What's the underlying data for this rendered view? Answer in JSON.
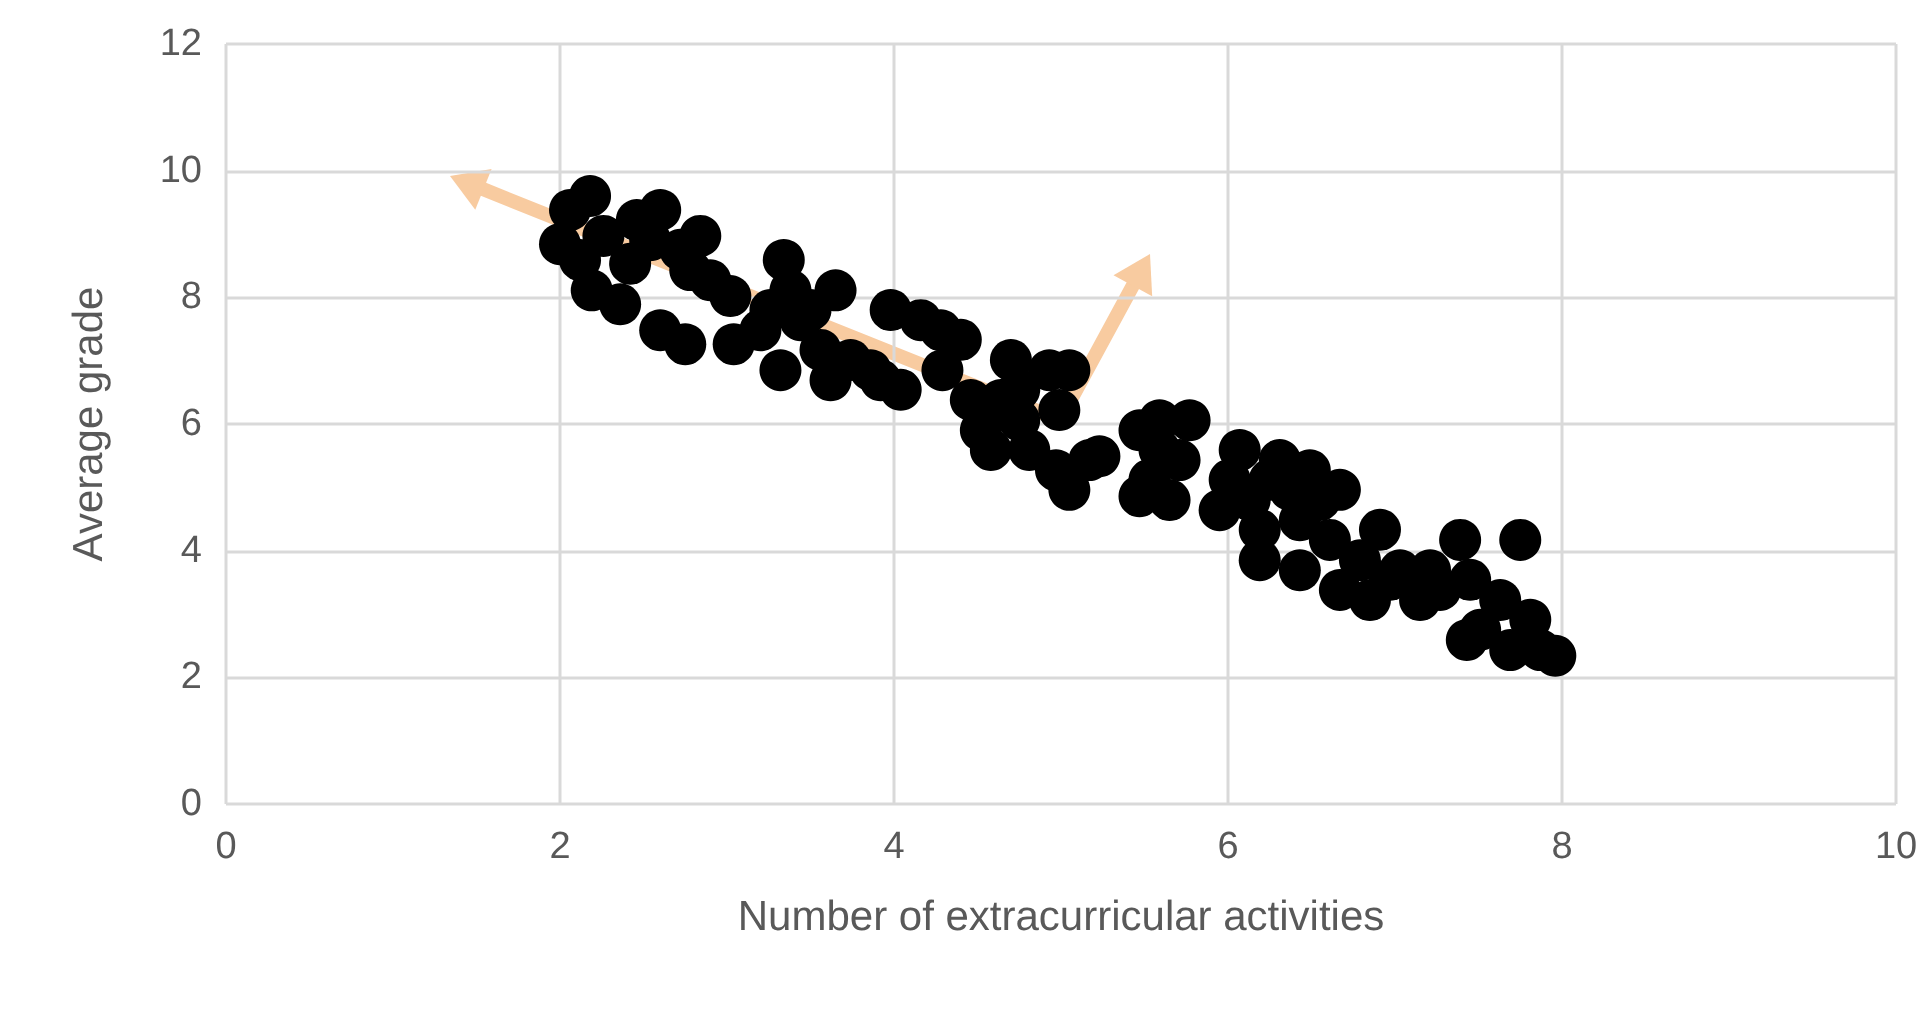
{
  "chart_data": {
    "type": "scatter",
    "xlabel": "Number of extracurricular activities",
    "ylabel": "Average grade",
    "xlim": [
      0,
      10
    ],
    "xticks": [
      0,
      2,
      4,
      6,
      8,
      10
    ],
    "ylim": [
      0,
      12
    ],
    "yticks": [
      0,
      2,
      4,
      6,
      8,
      10,
      12
    ],
    "grid": true,
    "marker": "circle",
    "series": [
      {
        "type": "scatter",
        "color": "#000000",
        "x": [
          2.0,
          2.06,
          2.18,
          2.12,
          2.19,
          2.26,
          2.36,
          2.46,
          2.54,
          2.6,
          2.42,
          2.72,
          2.84,
          2.78,
          2.9,
          3.02,
          2.6,
          2.75,
          3.04,
          3.2,
          3.34,
          3.38,
          3.32,
          3.44,
          3.26,
          3.56,
          3.65,
          3.62,
          3.74,
          3.86,
          3.98,
          4.04,
          3.92,
          4.16,
          4.28,
          4.4,
          4.29,
          3.5,
          4.46,
          4.52,
          4.64,
          4.7,
          4.58,
          4.75,
          4.93,
          4.99,
          5.05,
          4.97,
          5.05,
          4.81,
          5.17,
          5.23,
          4.75,
          5.47,
          5.59,
          5.77,
          5.53,
          5.65,
          5.47,
          5.71,
          5.59,
          6.01,
          6.07,
          5.95,
          6.13,
          6.19,
          6.25,
          6.31,
          6.37,
          6.19,
          6.43,
          6.49,
          6.55,
          6.67,
          6.43,
          6.61,
          6.67,
          6.79,
          6.91,
          6.97,
          6.85,
          7.03,
          7.21,
          7.15,
          7.27,
          7.39,
          7.45,
          7.51,
          7.63,
          7.75,
          7.81,
          7.87,
          7.96,
          7.69,
          7.43
        ],
        "values": [
          8.84,
          9.38,
          9.6,
          8.59,
          8.11,
          8.97,
          7.89,
          9.22,
          8.9,
          9.38,
          8.53,
          8.75,
          8.97,
          8.43,
          8.27,
          8.02,
          7.48,
          7.26,
          7.26,
          7.48,
          8.59,
          8.11,
          6.85,
          7.64,
          7.8,
          7.17,
          8.11,
          6.69,
          7.01,
          6.85,
          7.8,
          6.54,
          6.69,
          7.64,
          7.48,
          7.33,
          6.85,
          7.8,
          6.38,
          5.9,
          6.38,
          7.01,
          5.59,
          6.06,
          6.85,
          6.22,
          6.85,
          5.27,
          4.96,
          5.59,
          5.43,
          5.49,
          6.54,
          5.9,
          6.06,
          6.06,
          5.12,
          4.8,
          4.86,
          5.43,
          5.59,
          5.12,
          5.59,
          4.64,
          4.8,
          4.33,
          5.12,
          5.43,
          4.96,
          3.85,
          4.48,
          5.27,
          4.8,
          4.96,
          3.69,
          4.17,
          3.38,
          3.85,
          4.33,
          3.54,
          3.22,
          3.69,
          3.69,
          3.22,
          3.38,
          4.17,
          3.54,
          2.75,
          3.22,
          4.17,
          2.91,
          2.43,
          2.34,
          2.43,
          2.59
        ]
      }
    ]
  }
}
